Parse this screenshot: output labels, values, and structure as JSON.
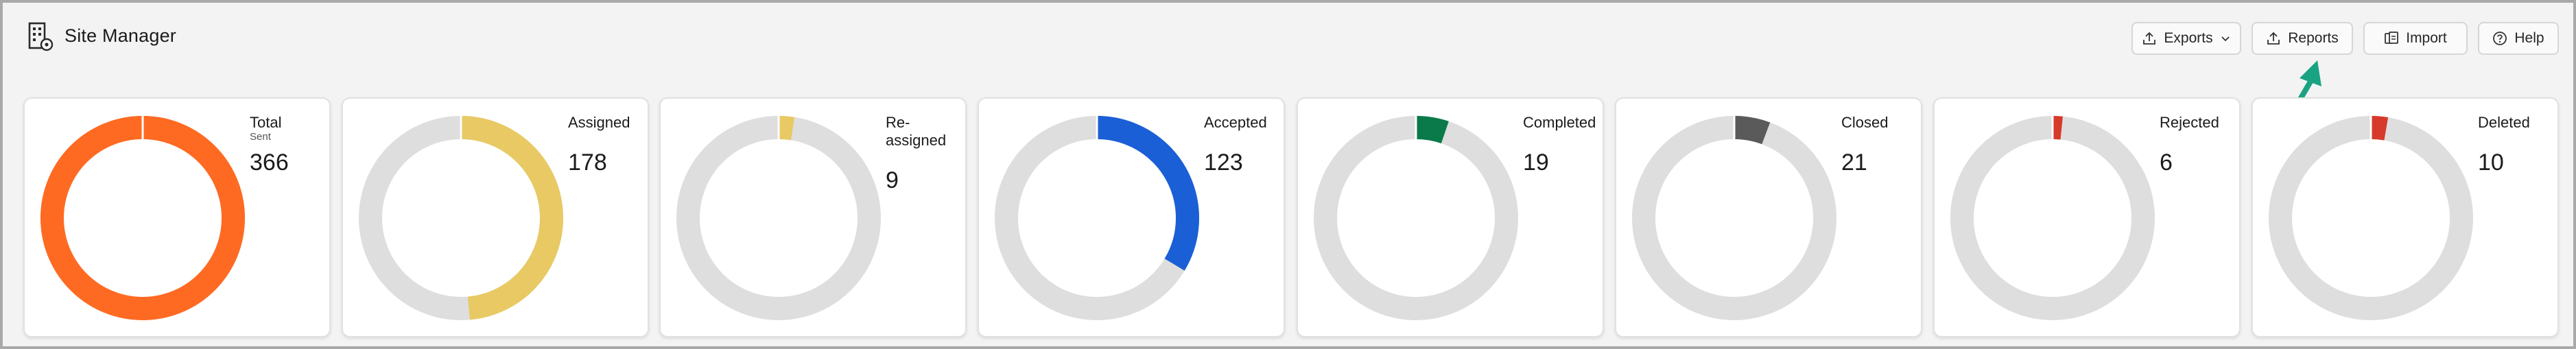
{
  "header": {
    "title": "Site Manager",
    "buttons": {
      "exports": "Exports",
      "reports": "Reports",
      "import": "Import",
      "help": "Help"
    }
  },
  "colors": {
    "track": "#dedede",
    "total": "#ff6a22",
    "assigned": "#e8c964",
    "reassigned": "#e8c964",
    "accepted": "#1a5fd6",
    "completed": "#0a7a4a",
    "closed": "#5a5a5a",
    "rejected": "#d63a2a",
    "deleted": "#d63a2a",
    "annotation_arrow": "#1aa383"
  },
  "cards": [
    {
      "key": "total",
      "label": "Total",
      "sublabel": "Sent",
      "value": "366",
      "fraction": 1.0
    },
    {
      "key": "assigned",
      "label": "Assigned",
      "sublabel": "",
      "value": "178",
      "fraction": 0.486
    },
    {
      "key": "reassigned",
      "label": "Re-assigned",
      "sublabel": "",
      "value": "9",
      "fraction": 0.025
    },
    {
      "key": "accepted",
      "label": "Accepted",
      "sublabel": "",
      "value": "123",
      "fraction": 0.336
    },
    {
      "key": "completed",
      "label": "Completed",
      "sublabel": "",
      "value": "19",
      "fraction": 0.052
    },
    {
      "key": "closed",
      "label": "Closed",
      "sublabel": "",
      "value": "21",
      "fraction": 0.057
    },
    {
      "key": "rejected",
      "label": "Rejected",
      "sublabel": "",
      "value": "6",
      "fraction": 0.016
    },
    {
      "key": "deleted",
      "label": "Deleted",
      "sublabel": "",
      "value": "10",
      "fraction": 0.027
    }
  ]
}
